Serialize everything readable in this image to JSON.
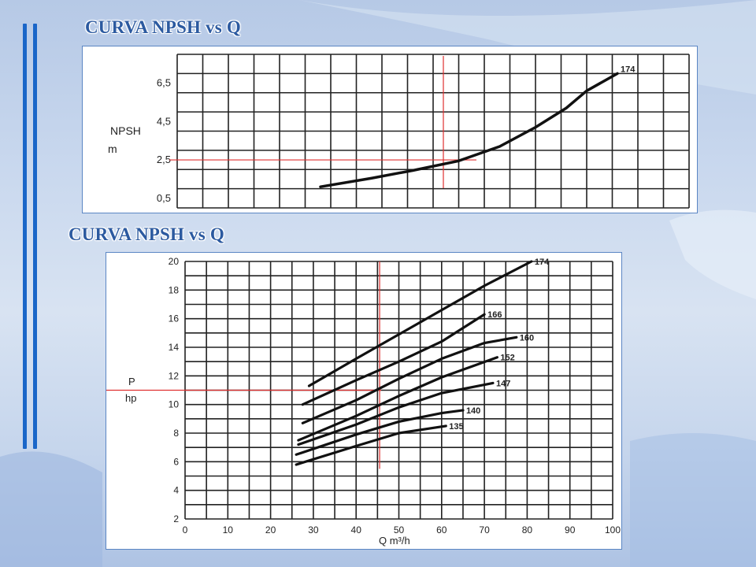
{
  "slide": {
    "title_top": "CURVA  NPSH vs Q",
    "title_bottom": "CURVA  NPSH vs Q",
    "accent_color": "#1a66c8",
    "title_color": "#2c5aa0",
    "marker_color": "#e03030"
  },
  "chart_data": [
    {
      "type": "line",
      "title": "CURVA  NPSH vs Q",
      "ylabel": "NPSH",
      "yunit": "m",
      "xlabel": "",
      "y_ticks": [
        "6,5",
        "4,5",
        "2,5",
        "0,5"
      ],
      "y_tick_values": [
        6.5,
        4.5,
        2.5,
        0.5
      ],
      "xlim": [
        0,
        100
      ],
      "ylim": [
        0,
        8
      ],
      "grid": true,
      "series": [
        {
          "name": "174",
          "x": [
            28,
            38,
            46,
            55,
            63,
            70,
            76,
            80,
            86
          ],
          "y": [
            1.1,
            1.55,
            1.95,
            2.45,
            3.2,
            4.2,
            5.2,
            6.1,
            7.0
          ]
        }
      ],
      "marker": {
        "x": 52,
        "y": 2.5
      }
    },
    {
      "type": "line",
      "title": "CURVA  NPSH vs Q",
      "ylabel": "P",
      "yunit": "hp",
      "xlabel": "Q m³/h",
      "x_ticks": [
        0,
        10,
        20,
        30,
        40,
        50,
        60,
        70,
        80,
        90,
        100
      ],
      "y_ticks": [
        2,
        4,
        6,
        8,
        10,
        12,
        14,
        16,
        18,
        20
      ],
      "xlim": [
        0,
        100
      ],
      "ylim": [
        2,
        20
      ],
      "grid": true,
      "series": [
        {
          "name": "174",
          "x": [
            29,
            40,
            50,
            60,
            70,
            81
          ],
          "y": [
            11.3,
            13.2,
            14.9,
            16.6,
            18.3,
            20
          ]
        },
        {
          "name": "166",
          "x": [
            27.5,
            40,
            50,
            60,
            70
          ],
          "y": [
            10.0,
            11.7,
            13.0,
            14.4,
            16.3
          ]
        },
        {
          "name": "160",
          "x": [
            27.5,
            40,
            50,
            60,
            70,
            77.5
          ],
          "y": [
            8.7,
            10.3,
            11.8,
            13.2,
            14.3,
            14.7
          ]
        },
        {
          "name": "152",
          "x": [
            26.5,
            40,
            50,
            60,
            73
          ],
          "y": [
            7.5,
            9.2,
            10.6,
            11.9,
            13.3
          ]
        },
        {
          "name": "147",
          "x": [
            26.5,
            40,
            50,
            60,
            72
          ],
          "y": [
            7.2,
            8.6,
            9.8,
            10.8,
            11.5
          ]
        },
        {
          "name": "140",
          "x": [
            26,
            40,
            50,
            60,
            65
          ],
          "y": [
            6.5,
            7.9,
            8.8,
            9.4,
            9.6
          ]
        },
        {
          "name": "135",
          "x": [
            26,
            40,
            50,
            61
          ],
          "y": [
            5.8,
            7.1,
            8.0,
            8.5
          ]
        }
      ],
      "marker": {
        "x": 45.5,
        "y": 11
      }
    }
  ]
}
